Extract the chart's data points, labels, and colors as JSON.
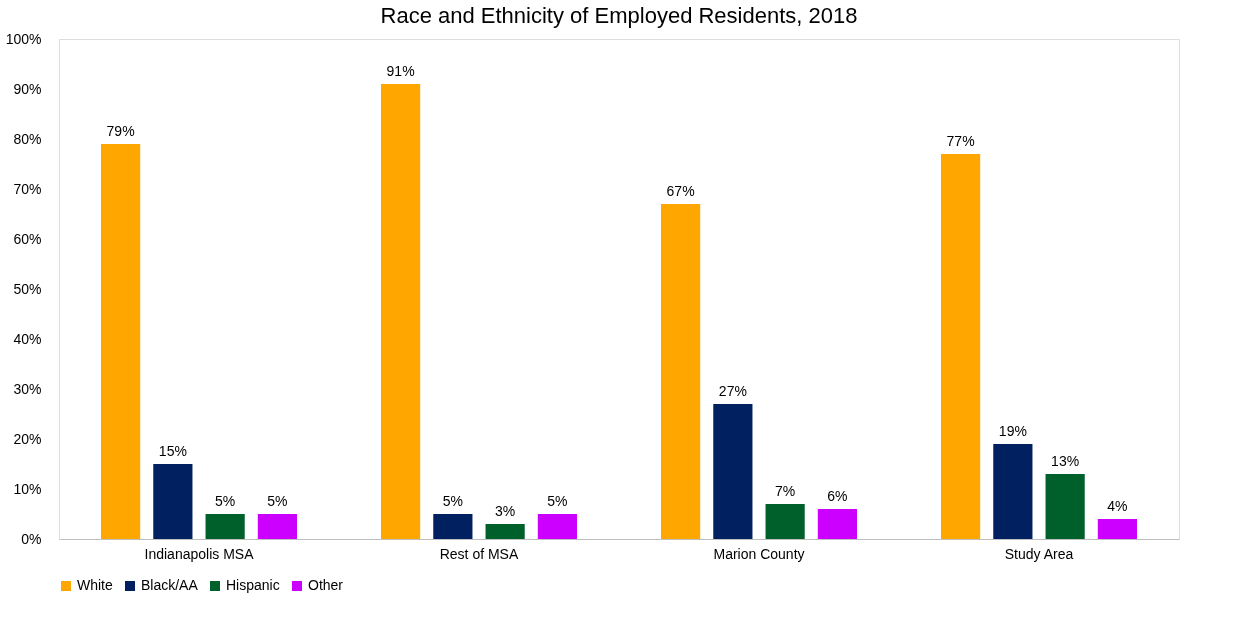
{
  "chart_data": {
    "type": "bar",
    "title": "Race and Ethnicity of Employed Residents, 2018",
    "categories": [
      "Indianapolis MSA",
      "Rest of MSA",
      "Marion County",
      "Study Area"
    ],
    "series": [
      {
        "name": "White",
        "color": "#ffa600",
        "values": [
          79,
          91,
          67,
          77
        ],
        "value_labels": [
          "79%",
          "91%",
          "67%",
          "77%"
        ]
      },
      {
        "name": "Black/AA",
        "color": "#002060",
        "values": [
          15,
          5,
          27,
          19
        ],
        "value_labels": [
          "15%",
          "5%",
          "27%",
          "19%"
        ]
      },
      {
        "name": "Hispanic",
        "color": "#00602b",
        "values": [
          5,
          3,
          7,
          13
        ],
        "value_labels": [
          "5%",
          "3%",
          "7%",
          "13%"
        ]
      },
      {
        "name": "Other",
        "color": "#cc00ff",
        "values": [
          5,
          5,
          6,
          4
        ],
        "value_labels": [
          "5%",
          "5%",
          "6%",
          "4%"
        ]
      }
    ],
    "ylim": [
      0,
      100
    ],
    "yticks": [
      {
        "value": 0,
        "label": "0%"
      },
      {
        "value": 10,
        "label": "10%"
      },
      {
        "value": 20,
        "label": "20%"
      },
      {
        "value": 30,
        "label": "30%"
      },
      {
        "value": 40,
        "label": "40%"
      },
      {
        "value": 50,
        "label": "50%"
      },
      {
        "value": 60,
        "label": "60%"
      },
      {
        "value": 70,
        "label": "70%"
      },
      {
        "value": 80,
        "label": "80%"
      },
      {
        "value": 90,
        "label": "90%"
      },
      {
        "value": 100,
        "label": "100%"
      }
    ],
    "grid": false,
    "legend": "bottom"
  }
}
